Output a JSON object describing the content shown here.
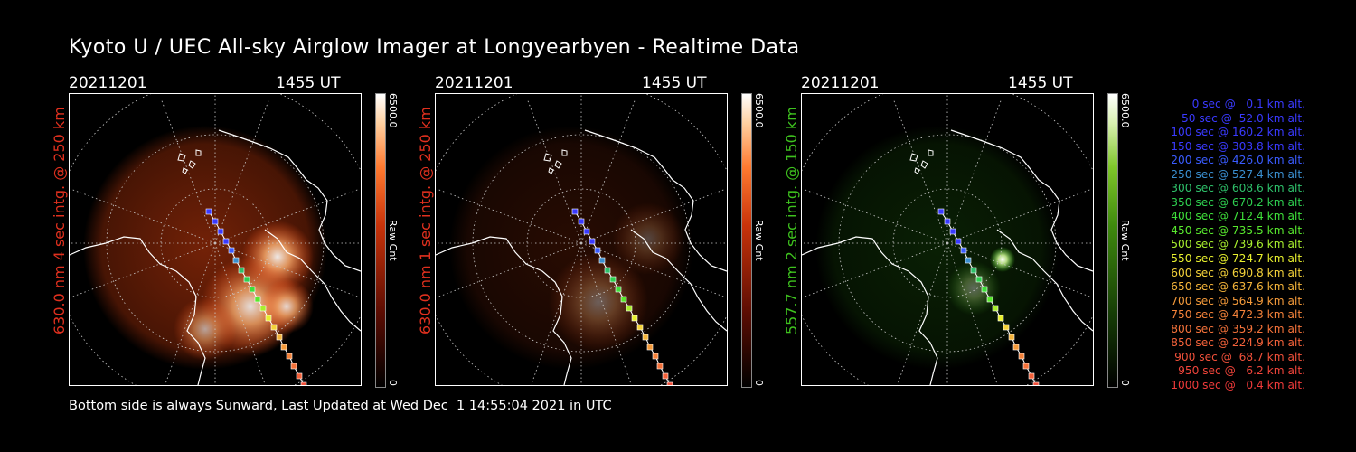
{
  "title": "Kyoto U / UEC All-sky Airglow Imager at Longyearbyen - Realtime Data",
  "panels": [
    {
      "date": "20211201",
      "time": "1455 UT",
      "side_label": "630.0 nm 4 sec intg. @ 250 km",
      "label_color": "#e0301e",
      "cbar_max": "6500.0",
      "cbar_label": "Raw Cnt",
      "cbar_min": "0",
      "glow_color": "#ff4a10"
    },
    {
      "date": "20211201",
      "time": "1455 UT",
      "side_label": "630.0 nm 1 sec intg. @ 250 km",
      "label_color": "#e0301e",
      "cbar_max": "6500.0",
      "cbar_label": "Raw Cnt",
      "cbar_min": "0",
      "glow_color": "#ff4a10"
    },
    {
      "date": "20211201",
      "time": "1455 UT",
      "side_label": "557.7 nm 2 sec intg. @ 150 km",
      "label_color": "#3ec21e",
      "cbar_max": "6500.0",
      "cbar_label": "Raw Cnt",
      "cbar_min": "0",
      "glow_color": "#3cc81a"
    }
  ],
  "legend": [
    {
      "text": "0 sec @   0.1 km alt.",
      "color": "#3a3aff"
    },
    {
      "text": "50 sec @  52.0 km alt.",
      "color": "#3a3aff"
    },
    {
      "text": "100 sec @ 160.2 km alt.",
      "color": "#3a3aff"
    },
    {
      "text": "150 sec @ 303.8 km alt.",
      "color": "#3a3aff"
    },
    {
      "text": "200 sec @ 426.0 km alt.",
      "color": "#3a5cff"
    },
    {
      "text": "250 sec @ 527.4 km alt.",
      "color": "#3a8fd0"
    },
    {
      "text": "300 sec @ 608.6 km alt.",
      "color": "#2ec06a"
    },
    {
      "text": "350 sec @ 670.2 km alt.",
      "color": "#2ed050"
    },
    {
      "text": "400 sec @ 712.4 km alt.",
      "color": "#3ee03a"
    },
    {
      "text": "450 sec @ 735.5 km alt.",
      "color": "#58e82e"
    },
    {
      "text": "500 sec @ 739.6 km alt.",
      "color": "#a8ef2e"
    },
    {
      "text": "550 sec @ 724.7 km alt.",
      "color": "#e8f02e"
    },
    {
      "text": "600 sec @ 690.8 km alt.",
      "color": "#f4d23a"
    },
    {
      "text": "650 sec @ 637.6 km alt.",
      "color": "#f4b43a"
    },
    {
      "text": "700 sec @ 564.9 km alt.",
      "color": "#f49a3a"
    },
    {
      "text": "750 sec @ 472.3 km alt.",
      "color": "#f4823a"
    },
    {
      "text": "800 sec @ 359.2 km alt.",
      "color": "#f4723a"
    },
    {
      "text": "850 sec @ 224.9 km alt.",
      "color": "#f4623a"
    },
    {
      "text": "900 sec @  68.7 km alt.",
      "color": "#f0503a"
    },
    {
      "text": "950 sec @   6.2 km alt.",
      "color": "#f0443a"
    },
    {
      "text": "1000 sec @   0.4 km alt.",
      "color": "#f03a3a"
    }
  ],
  "footer": "Bottom side is always Sunward, Last Updated at Wed Dec  1 14:55:04 2021 in UTC"
}
